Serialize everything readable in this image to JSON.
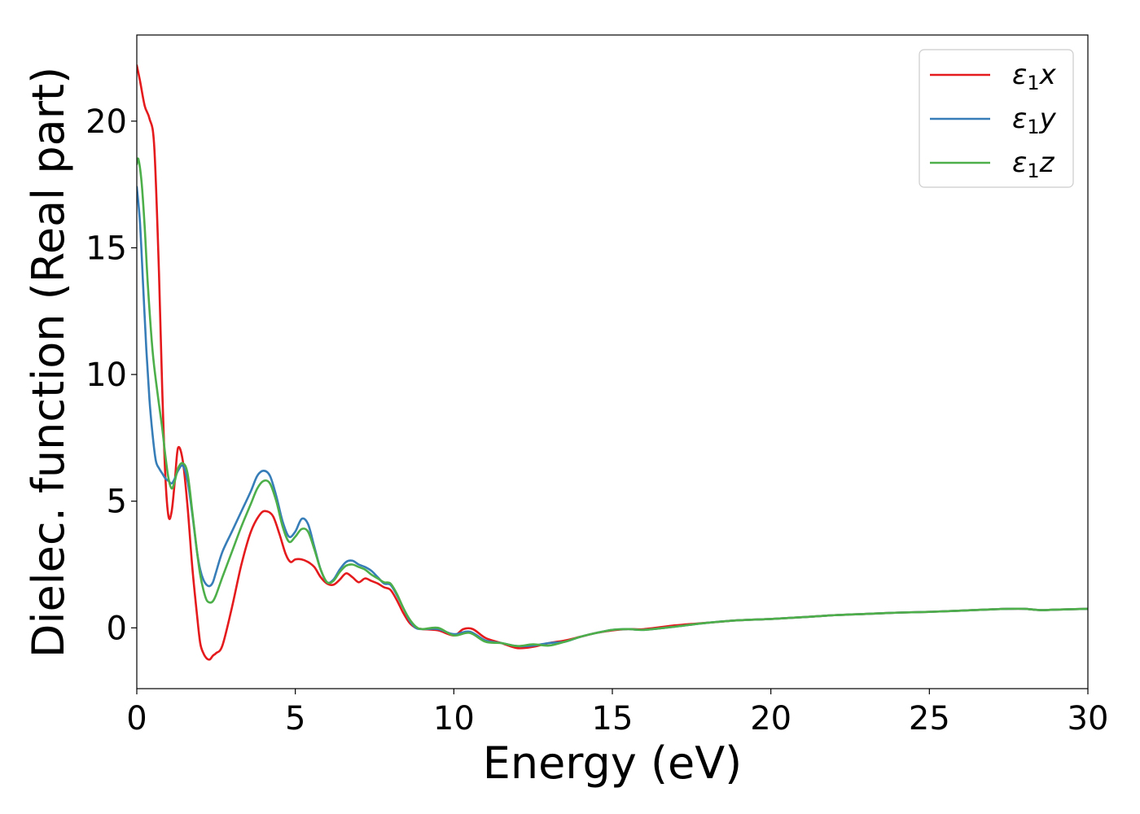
{
  "chart_data": {
    "type": "line",
    "xlabel": "Energy (eV)",
    "ylabel": "Dielec. function (Real part)",
    "xlim": [
      0,
      30
    ],
    "ylim": [
      -2.4,
      23.4
    ],
    "xticks": [
      0,
      5,
      10,
      15,
      20,
      25,
      30
    ],
    "xtick_labels": [
      "0",
      "5",
      "10",
      "15",
      "20",
      "25",
      "30"
    ],
    "yticks": [
      0,
      5,
      10,
      15,
      20
    ],
    "ytick_labels": [
      "0",
      "5",
      "10",
      "15",
      "20"
    ],
    "grid": false,
    "legend_position": "top-right",
    "series": [
      {
        "name": "ε₁x",
        "legend_main": "ε",
        "legend_sub": "1",
        "legend_suffix": "x",
        "color": "#e41a1c",
        "x": [
          0,
          0.1,
          0.25,
          0.4,
          0.55,
          0.7,
          0.8,
          0.9,
          1.0,
          1.1,
          1.2,
          1.3,
          1.45,
          1.6,
          1.75,
          1.9,
          2.0,
          2.1,
          2.2,
          2.3,
          2.4,
          2.5,
          2.7,
          3.0,
          3.3,
          3.6,
          3.9,
          4.1,
          4.3,
          4.5,
          4.7,
          4.85,
          5.0,
          5.2,
          5.4,
          5.6,
          5.8,
          6.0,
          6.2,
          6.4,
          6.6,
          6.8,
          7.0,
          7.2,
          7.4,
          7.6,
          7.8,
          8.0,
          8.2,
          8.4,
          8.6,
          8.8,
          9.0,
          9.5,
          10.0,
          10.3,
          10.6,
          11.0,
          11.5,
          12.0,
          12.5,
          13.0,
          13.5,
          14.0,
          14.5,
          15.0,
          15.5,
          16.0,
          17.0,
          18.0,
          19.0,
          20.0,
          21.0,
          22.0,
          23.0,
          24.0,
          25.0,
          26.0,
          27.0,
          27.5,
          28.0,
          28.5,
          29.0,
          30.0
        ],
        "y": [
          22.2,
          21.6,
          20.6,
          20.1,
          19.0,
          14.0,
          9.5,
          6.0,
          4.4,
          4.6,
          5.8,
          7.1,
          6.6,
          4.8,
          2.4,
          0.5,
          -0.6,
          -1.0,
          -1.2,
          -1.25,
          -1.1,
          -1.0,
          -0.7,
          0.8,
          2.5,
          3.8,
          4.5,
          4.6,
          4.4,
          3.7,
          2.9,
          2.6,
          2.7,
          2.7,
          2.6,
          2.4,
          2.0,
          1.75,
          1.7,
          1.9,
          2.15,
          2.0,
          1.8,
          1.95,
          1.85,
          1.75,
          1.6,
          1.5,
          1.1,
          0.6,
          0.2,
          0.0,
          -0.05,
          -0.1,
          -0.3,
          -0.05,
          -0.05,
          -0.4,
          -0.6,
          -0.8,
          -0.75,
          -0.6,
          -0.5,
          -0.35,
          -0.2,
          -0.1,
          -0.05,
          -0.05,
          0.1,
          0.2,
          0.3,
          0.35,
          0.42,
          0.5,
          0.55,
          0.6,
          0.63,
          0.68,
          0.73,
          0.75,
          0.75,
          0.7,
          0.72,
          0.75
        ]
      },
      {
        "name": "ε₁y",
        "legend_main": "ε",
        "legend_sub": "1",
        "legend_suffix": "y",
        "color": "#377eb8",
        "x": [
          0,
          0.1,
          0.2,
          0.3,
          0.4,
          0.5,
          0.6,
          0.7,
          0.8,
          0.9,
          1.0,
          1.1,
          1.2,
          1.3,
          1.45,
          1.6,
          1.75,
          1.9,
          2.0,
          2.1,
          2.2,
          2.3,
          2.4,
          2.5,
          2.7,
          3.0,
          3.3,
          3.6,
          3.8,
          4.0,
          4.2,
          4.4,
          4.6,
          4.8,
          5.0,
          5.2,
          5.4,
          5.6,
          5.8,
          6.0,
          6.2,
          6.4,
          6.6,
          6.8,
          7.0,
          7.2,
          7.4,
          7.6,
          7.8,
          8.0,
          8.2,
          8.4,
          8.6,
          8.8,
          9.0,
          9.5,
          10.0,
          10.5,
          11.0,
          11.5,
          12.0,
          12.5,
          13.0,
          13.5,
          14.0,
          14.5,
          15.0,
          15.5,
          16.0,
          17.0,
          18.0,
          19.0,
          20.0,
          21.0,
          22.0,
          23.0,
          24.0,
          25.0,
          26.0,
          27.0,
          27.5,
          28.0,
          28.5,
          29.0,
          30.0
        ],
        "y": [
          17.4,
          16.0,
          13.5,
          11.0,
          9.0,
          7.6,
          6.6,
          6.3,
          6.1,
          5.9,
          5.8,
          5.7,
          5.9,
          6.2,
          6.4,
          5.8,
          4.5,
          3.0,
          2.3,
          1.9,
          1.7,
          1.65,
          1.8,
          2.2,
          3.0,
          3.8,
          4.6,
          5.4,
          6.0,
          6.2,
          6.0,
          5.2,
          4.2,
          3.6,
          3.8,
          4.3,
          4.1,
          3.2,
          2.3,
          1.8,
          1.9,
          2.3,
          2.6,
          2.65,
          2.5,
          2.4,
          2.25,
          2.0,
          1.75,
          1.7,
          1.3,
          0.8,
          0.3,
          0.0,
          -0.05,
          -0.05,
          -0.25,
          -0.15,
          -0.5,
          -0.6,
          -0.72,
          -0.7,
          -0.6,
          -0.55,
          -0.35,
          -0.2,
          -0.08,
          -0.05,
          -0.08,
          0.05,
          0.2,
          0.3,
          0.35,
          0.42,
          0.5,
          0.55,
          0.6,
          0.63,
          0.68,
          0.73,
          0.75,
          0.75,
          0.7,
          0.72,
          0.75
        ]
      },
      {
        "name": "ε₁z",
        "legend_main": "ε",
        "legend_sub": "1",
        "legend_suffix": "z",
        "color": "#4daf4a",
        "x": [
          0,
          0.05,
          0.15,
          0.25,
          0.35,
          0.5,
          0.65,
          0.8,
          0.9,
          1.0,
          1.1,
          1.2,
          1.3,
          1.45,
          1.6,
          1.75,
          1.9,
          2.0,
          2.1,
          2.2,
          2.3,
          2.4,
          2.5,
          2.7,
          3.0,
          3.3,
          3.6,
          3.8,
          4.0,
          4.2,
          4.4,
          4.6,
          4.8,
          5.0,
          5.2,
          5.4,
          5.6,
          5.8,
          6.0,
          6.2,
          6.4,
          6.6,
          6.8,
          7.0,
          7.2,
          7.4,
          7.6,
          7.8,
          8.0,
          8.2,
          8.4,
          8.6,
          8.8,
          9.0,
          9.5,
          10.0,
          10.5,
          11.0,
          11.5,
          12.0,
          12.5,
          13.0,
          13.5,
          14.0,
          14.5,
          15.0,
          15.5,
          16.0,
          17.0,
          18.0,
          19.0,
          20.0,
          21.0,
          22.0,
          23.0,
          24.0,
          25.0,
          26.0,
          27.0,
          27.5,
          28.0,
          28.5,
          29.0,
          30.0
        ],
        "y": [
          18.3,
          18.5,
          17.6,
          15.8,
          13.5,
          10.9,
          9.3,
          7.9,
          6.8,
          5.9,
          5.5,
          5.8,
          6.3,
          6.5,
          6.1,
          4.6,
          3.0,
          2.1,
          1.5,
          1.1,
          1.0,
          1.05,
          1.3,
          2.0,
          3.0,
          4.0,
          4.9,
          5.5,
          5.8,
          5.7,
          5.0,
          4.0,
          3.4,
          3.6,
          3.9,
          3.8,
          3.1,
          2.3,
          1.8,
          1.85,
          2.2,
          2.45,
          2.5,
          2.4,
          2.3,
          2.1,
          1.95,
          1.8,
          1.75,
          1.35,
          0.8,
          0.35,
          0.05,
          -0.05,
          0.0,
          -0.3,
          -0.2,
          -0.55,
          -0.6,
          -0.72,
          -0.65,
          -0.7,
          -0.55,
          -0.35,
          -0.2,
          -0.08,
          -0.05,
          -0.08,
          0.05,
          0.2,
          0.3,
          0.35,
          0.42,
          0.5,
          0.55,
          0.6,
          0.63,
          0.68,
          0.73,
          0.75,
          0.75,
          0.7,
          0.72,
          0.75
        ]
      }
    ]
  }
}
